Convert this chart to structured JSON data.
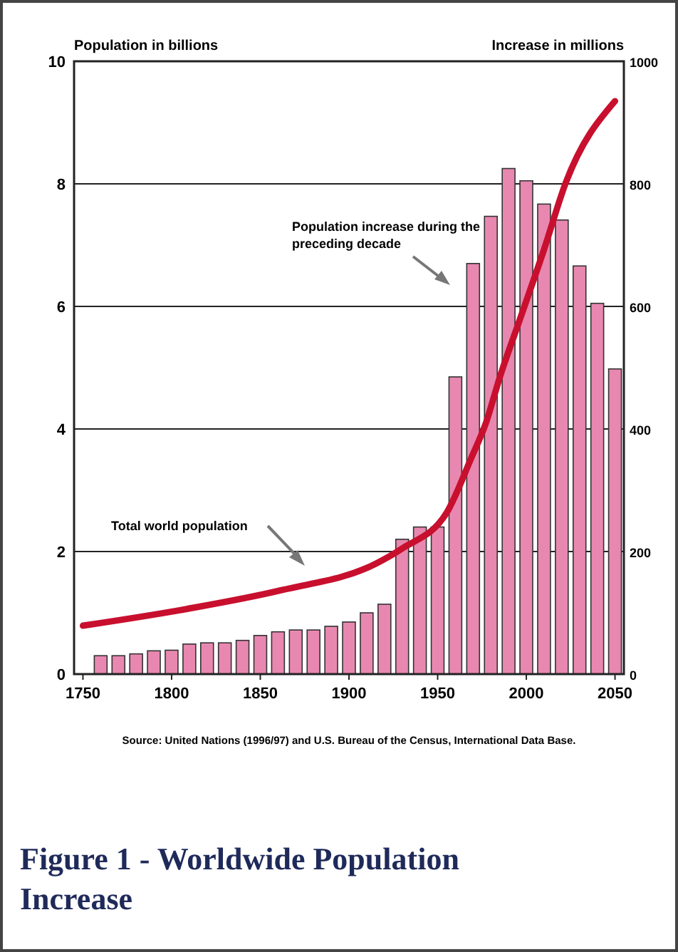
{
  "chart_data": {
    "type": "bar",
    "title": "Figure 1 - Worldwide Population Increase",
    "ylabel": "Population in billions",
    "y2label": "Increase in millions",
    "x": [
      1760,
      1770,
      1780,
      1790,
      1800,
      1810,
      1820,
      1830,
      1840,
      1850,
      1860,
      1870,
      1880,
      1890,
      1900,
      1910,
      1920,
      1930,
      1940,
      1950,
      1960,
      1970,
      1980,
      1990,
      2000,
      2010,
      2020,
      2030,
      2040,
      2050
    ],
    "series": [
      {
        "axis": "y2",
        "color": "#e888b0",
        "values": [
          30,
          30,
          33,
          38,
          39,
          49,
          51,
          51,
          55,
          63,
          69,
          72,
          72,
          78,
          85,
          100,
          114,
          220,
          240,
          240,
          485,
          670,
          747,
          825,
          805,
          767,
          741,
          666,
          605,
          498
        ]
      },
      {
        "type": "line",
        "color": "#c8102e",
        "x": [
          1750,
          1808,
          1862,
          1915,
          1930,
          1955,
          1969,
          1977,
          1985,
          1997,
          2010,
          2022,
          2050
        ],
        "values": [
          0.79,
          1.06,
          1.37,
          1.8,
          2.05,
          2.63,
          3.53,
          4.08,
          4.84,
          5.84,
          6.93,
          8.0,
          9.35
        ]
      }
    ],
    "xlim": [
      1745,
      2055
    ],
    "xticks": [
      1750,
      1800,
      1850,
      1900,
      1950,
      2000,
      2050
    ],
    "ylim": [
      0,
      10
    ],
    "yticks": [
      0,
      2,
      4,
      6,
      8,
      10
    ],
    "y2lim": [
      0,
      1000
    ],
    "y2ticks": [
      0,
      200,
      400,
      600,
      800,
      1000
    ],
    "grid": "y",
    "marker": "none",
    "line_style": "solid",
    "annotations": [
      "Population increase during the preceding decade",
      "Total world population",
      "Source: United Nations (1996/97) and U.S. Bureau of the Census, International Data Base."
    ]
  }
}
